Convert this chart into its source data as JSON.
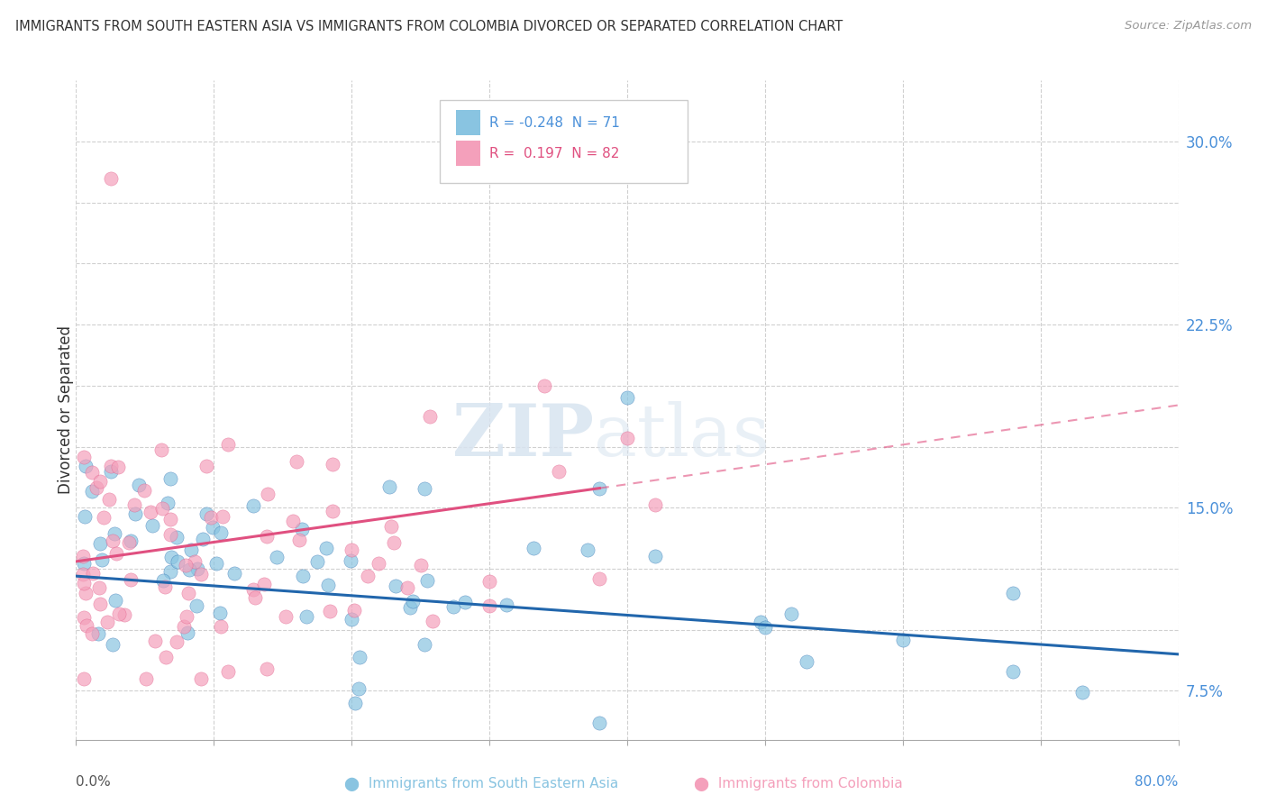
{
  "title": "IMMIGRANTS FROM SOUTH EASTERN ASIA VS IMMIGRANTS FROM COLOMBIA DIVORCED OR SEPARATED CORRELATION CHART",
  "source": "Source: ZipAtlas.com",
  "ylabel": "Divorced or Separated",
  "legend_label1": "Immigrants from South Eastern Asia",
  "legend_label2": "Immigrants from Colombia",
  "R1": -0.248,
  "N1": 71,
  "R2": 0.197,
  "N2": 82,
  "color1": "#89c4e1",
  "color2": "#f4a0bb",
  "trend1_color": "#2166ac",
  "trend2_color": "#e05080",
  "xlim": [
    0.0,
    0.8
  ],
  "ylim": [
    0.055,
    0.325
  ],
  "yticks": [
    0.075,
    0.1,
    0.125,
    0.15,
    0.175,
    0.2,
    0.225,
    0.25,
    0.275,
    0.3
  ],
  "ytick_labels": [
    "7.5%",
    "",
    "",
    "15.0%",
    "",
    "",
    "22.5%",
    "",
    "",
    "30.0%"
  ],
  "watermark_zip": "ZIP",
  "watermark_atlas": "atlas",
  "trend1_x0": 0.0,
  "trend1_y0": 0.122,
  "trend1_x1": 0.8,
  "trend1_y1": 0.09,
  "trend2_solid_x0": 0.0,
  "trend2_solid_y0": 0.128,
  "trend2_solid_x1": 0.38,
  "trend2_solid_y1": 0.158,
  "trend2_dash_x0": 0.38,
  "trend2_dash_y0": 0.158,
  "trend2_dash_x1": 0.8,
  "trend2_dash_y1": 0.192
}
